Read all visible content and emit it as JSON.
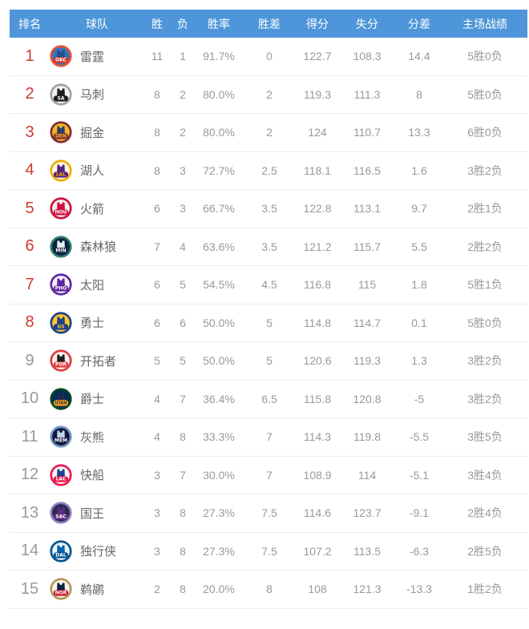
{
  "colors": {
    "header_bg": "#4E96D9",
    "header_text": "#ffffff",
    "rank_highlight": "#D03A32",
    "rank_normal": "#999999",
    "stat_text": "#999999",
    "team_text": "#666666",
    "divider": "#ececec"
  },
  "table": {
    "columns": [
      {
        "key": "rank",
        "label": "排名"
      },
      {
        "key": "team",
        "label": "球队"
      },
      {
        "key": "wins",
        "label": "胜"
      },
      {
        "key": "losses",
        "label": "负"
      },
      {
        "key": "win_pct",
        "label": "胜率"
      },
      {
        "key": "games_behind",
        "label": "胜差"
      },
      {
        "key": "points_for",
        "label": "得分"
      },
      {
        "key": "points_against",
        "label": "失分"
      },
      {
        "key": "point_diff",
        "label": "分差"
      },
      {
        "key": "home_record",
        "label": "主场战绩"
      }
    ],
    "rows": [
      {
        "rank": "1",
        "rank_style": "highlight",
        "team": "雷霆",
        "abbr": "OKC",
        "wins": "11",
        "losses": "1",
        "win_pct": "91.7%",
        "games_behind": "0",
        "points_for": "122.7",
        "points_against": "108.3",
        "point_diff": "14.4",
        "home_record": "5胜0负",
        "logo": {
          "ring": "#E8532E",
          "bg": "#3573BD",
          "jersey": "#24508F",
          "band": "#D9342B",
          "band_text": "#FFFFFF"
        }
      },
      {
        "rank": "2",
        "rank_style": "highlight",
        "team": "马刺",
        "abbr": "SA",
        "wins": "8",
        "losses": "2",
        "win_pct": "80.0%",
        "games_behind": "2",
        "points_for": "119.3",
        "points_against": "111.3",
        "point_diff": "8",
        "home_record": "5胜0负",
        "logo": {
          "ring": "#9DA2A6",
          "bg": "#F2F2F2",
          "jersey": "#1E1E1E",
          "band": "#1E1E1E",
          "band_text": "#FFFFFF"
        }
      },
      {
        "rank": "3",
        "rank_style": "highlight",
        "team": "掘金",
        "abbr": "DEN",
        "wins": "8",
        "losses": "2",
        "win_pct": "80.0%",
        "games_behind": "2",
        "points_for": "124",
        "points_against": "110.7",
        "point_diff": "13.3",
        "home_record": "6胜0负",
        "logo": {
          "ring": "#7B2D35",
          "bg": "#F4B528",
          "jersey": "#2C3E6B",
          "band": "#7B2D35",
          "band_text": "#F4B528"
        }
      },
      {
        "rank": "4",
        "rank_style": "highlight",
        "team": "湖人",
        "abbr": "LAL",
        "wins": "8",
        "losses": "3",
        "win_pct": "72.7%",
        "games_behind": "2.5",
        "points_for": "118.1",
        "points_against": "116.5",
        "point_diff": "1.6",
        "home_record": "3胜2负",
        "logo": {
          "ring": "#F2A900",
          "bg": "#FDF6E3",
          "jersey": "#552583",
          "band": "#552583",
          "band_text": "#F2A900"
        }
      },
      {
        "rank": "5",
        "rank_style": "highlight",
        "team": "火箭",
        "abbr": "HOU",
        "wins": "6",
        "losses": "3",
        "win_pct": "66.7%",
        "games_behind": "3.5",
        "points_for": "122.8",
        "points_against": "113.1",
        "point_diff": "9.7",
        "home_record": "2胜1负",
        "logo": {
          "ring": "#CE1141",
          "bg": "#FBF0F0",
          "jersey": "#CE1141",
          "band": "#CE1141",
          "band_text": "#FFFFFF"
        }
      },
      {
        "rank": "6",
        "rank_style": "highlight",
        "team": "森林狼",
        "abbr": "MIN",
        "wins": "7",
        "losses": "4",
        "win_pct": "63.6%",
        "games_behind": "3.5",
        "points_for": "121.2",
        "points_against": "115.7",
        "point_diff": "5.5",
        "home_record": "2胜2负",
        "logo": {
          "ring": "#2E7E6F",
          "bg": "#0C2340",
          "jersey": "#E8F0F5",
          "band": "#0C2340",
          "band_text": "#FFFFFF"
        }
      },
      {
        "rank": "7",
        "rank_style": "highlight",
        "team": "太阳",
        "abbr": "PHO",
        "wins": "6",
        "losses": "5",
        "win_pct": "54.5%",
        "games_behind": "4.5",
        "points_for": "116.8",
        "points_against": "115",
        "point_diff": "1.8",
        "home_record": "5胜1负",
        "logo": {
          "ring": "#5F259F",
          "bg": "#F6F1FB",
          "jersey": "#5F259F",
          "band": "#5F259F",
          "band_text": "#FFFFFF"
        }
      },
      {
        "rank": "8",
        "rank_style": "highlight",
        "team": "勇士",
        "abbr": "GS",
        "wins": "6",
        "losses": "6",
        "win_pct": "50.0%",
        "games_behind": "5",
        "points_for": "114.8",
        "points_against": "114.7",
        "point_diff": "0.1",
        "home_record": "5胜0负",
        "logo": {
          "ring": "#1D428A",
          "bg": "#FFC72C",
          "jersey": "#1D428A",
          "band": "#1D428A",
          "band_text": "#FFC72C"
        }
      },
      {
        "rank": "9",
        "rank_style": "normal",
        "team": "开拓者",
        "abbr": "POR",
        "wins": "5",
        "losses": "5",
        "win_pct": "50.0%",
        "games_behind": "5",
        "points_for": "120.6",
        "points_against": "119.3",
        "point_diff": "1.3",
        "home_record": "3胜2负",
        "logo": {
          "ring": "#E03A3E",
          "bg": "#FBF0F0",
          "jersey": "#1E1E1E",
          "band": "#E03A3E",
          "band_text": "#FFFFFF"
        }
      },
      {
        "rank": "10",
        "rank_style": "normal",
        "team": "爵士",
        "abbr": "UTAH",
        "wins": "4",
        "losses": "7",
        "win_pct": "36.4%",
        "games_behind": "6.5",
        "points_for": "115.8",
        "points_against": "120.8",
        "point_diff": "-5",
        "home_record": "3胜2负",
        "logo": {
          "ring": "#00471B",
          "bg": "#002B5C",
          "jersey": "#1D2B4E",
          "band": "#F9A01B",
          "band_text": "#1D2951"
        }
      },
      {
        "rank": "11",
        "rank_style": "normal",
        "team": "灰熊",
        "abbr": "MEM",
        "wins": "4",
        "losses": "8",
        "win_pct": "33.3%",
        "games_behind": "7",
        "points_for": "114.3",
        "points_against": "119.8",
        "point_diff": "-5.5",
        "home_record": "3胜5负",
        "logo": {
          "ring": "#7399C6",
          "bg": "#12173F",
          "jersey": "#BED4E9",
          "band": "#12173F",
          "band_text": "#FFFFFF"
        }
      },
      {
        "rank": "12",
        "rank_style": "normal",
        "team": "快船",
        "abbr": "LAC",
        "wins": "3",
        "losses": "7",
        "win_pct": "30.0%",
        "games_behind": "7",
        "points_for": "108.9",
        "points_against": "114",
        "point_diff": "-5.1",
        "home_record": "3胜4负",
        "logo": {
          "ring": "#ED174C",
          "bg": "#F5F7FA",
          "jersey": "#1D428A",
          "band": "#ED174C",
          "band_text": "#FFFFFF"
        }
      },
      {
        "rank": "13",
        "rank_style": "normal",
        "team": "国王",
        "abbr": "SAC",
        "wins": "3",
        "losses": "8",
        "win_pct": "27.3%",
        "games_behind": "7.5",
        "points_for": "114.6",
        "points_against": "123.7",
        "point_diff": "-9.1",
        "home_record": "2胜4负",
        "logo": {
          "ring": "#8E7EC0",
          "bg": "#2E2A4F",
          "jersey": "#5A2D81",
          "band": "#5A2D81",
          "band_text": "#FFFFFF"
        }
      },
      {
        "rank": "14",
        "rank_style": "normal",
        "team": "独行侠",
        "abbr": "DAL",
        "wins": "3",
        "losses": "8",
        "win_pct": "27.3%",
        "games_behind": "7.5",
        "points_for": "107.2",
        "points_against": "113.5",
        "point_diff": "-6.3",
        "home_record": "2胜5负",
        "logo": {
          "ring": "#00538C",
          "bg": "#Eef3F8",
          "jersey": "#0064B1",
          "band": "#00538C",
          "band_text": "#FFFFFF"
        }
      },
      {
        "rank": "15",
        "rank_style": "normal",
        "team": "鹈鹕",
        "abbr": "NOR",
        "wins": "2",
        "losses": "8",
        "win_pct": "20.0%",
        "games_behind": "8",
        "points_for": "108",
        "points_against": "121.3",
        "point_diff": "-13.3",
        "home_record": "1胜2负",
        "logo": {
          "ring": "#B4975A",
          "bg": "#FAF6EC",
          "jersey": "#0C2340",
          "band": "#C8102E",
          "band_text": "#FFFFFF"
        }
      }
    ]
  }
}
